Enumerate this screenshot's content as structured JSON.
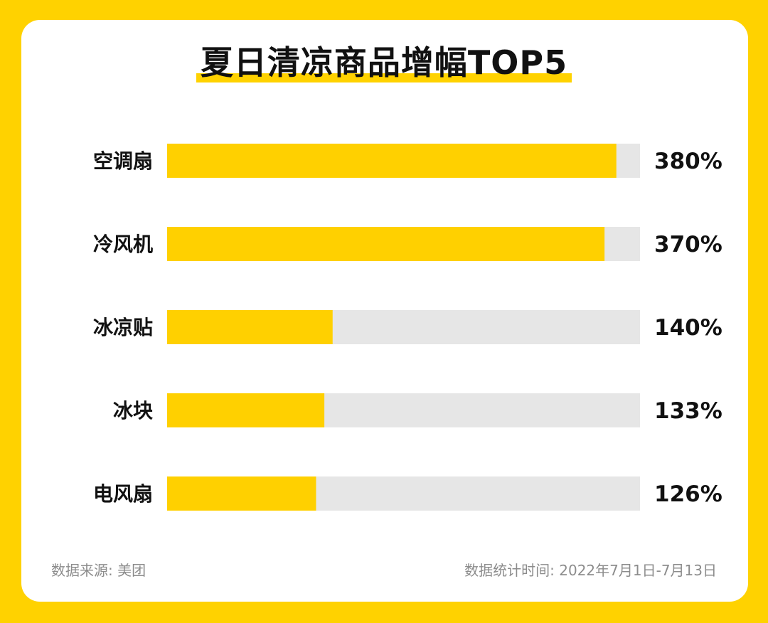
{
  "colors": {
    "background": "#FFD200",
    "card": "#FFFFFF",
    "bar_fill": "#FFD000",
    "bar_track": "#E6E6E6",
    "text": "#111111",
    "footer_text": "#8C8C8C"
  },
  "footer": {
    "source": "数据来源: 美团",
    "period": "数据统计时间: 2022年7月1日-7月13日"
  },
  "chart_data": {
    "type": "bar",
    "orientation": "horizontal",
    "title": "夏日清凉商品增幅TOP5",
    "categories": [
      "空调扇",
      "冷风机",
      "冰凉贴",
      "冰块",
      "电风扇"
    ],
    "values": [
      380,
      370,
      140,
      133,
      126
    ],
    "value_labels": [
      "380%",
      "370%",
      "140%",
      "133%",
      "126%"
    ],
    "unit": "%",
    "xlim": [
      0,
      400
    ],
    "grid": false,
    "legend": "none"
  }
}
